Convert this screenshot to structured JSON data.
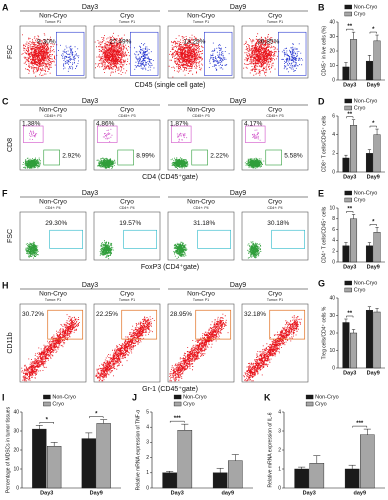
{
  "flow_panels": [
    {
      "label": "A",
      "groups": [
        "Day3",
        "Day9"
      ],
      "columns": [
        "Non-Cryo",
        "Cryo",
        "Non-Cryo",
        "Cryo"
      ],
      "gate": "Tumor: P1",
      "y_label": "FSC",
      "x_label": "CD45 (single cell gate)",
      "percentages": [
        [
          "9.30%"
        ],
        [
          "27.49%"
        ],
        [
          "13.25%"
        ],
        [
          "26.85%"
        ]
      ]
    },
    {
      "label": "C",
      "groups": [
        "Day3",
        "Day9"
      ],
      "columns": [
        "Non-Cryo",
        "Cryo",
        "Non-Cryo",
        "Cryo"
      ],
      "gate": "CD45+: P3",
      "y_label": "CD8",
      "x_label": "CD4 (CD45⁺gate)",
      "percentages": [
        [
          "1.38%",
          "2.92%"
        ],
        [
          "4.86%",
          "8.99%"
        ],
        [
          "1.87%",
          "2.22%"
        ],
        [
          "4.17%",
          "5.58%"
        ]
      ]
    },
    {
      "label": "F",
      "groups": [
        "Day3",
        "Day9"
      ],
      "columns": [
        "Non-Cryo",
        "Cryo",
        "Non-Cryo",
        "Cryo"
      ],
      "gate": "CD4+: P4",
      "y_label": "FSC",
      "x_label": "FoxP3 (CD4⁺gate)",
      "percentages": [
        [
          "29.30%"
        ],
        [
          "19.57%"
        ],
        [
          "31.18%"
        ],
        [
          "30.18%"
        ]
      ]
    },
    {
      "label": "H",
      "groups": [
        "Day3",
        "Day9"
      ],
      "columns": [
        "Non-Cryo",
        "Cryo",
        "Non-Cryo",
        "Cryo"
      ],
      "gate": "Tumor: P1",
      "y_label": "CD11b",
      "x_label": "Gr-1 (CD45⁺gate)",
      "percentages": [
        [
          "30.72%"
        ],
        [
          "22.25%"
        ],
        [
          "28.95%"
        ],
        [
          "32.18%"
        ]
      ]
    }
  ],
  "chart_data": [
    {
      "type": "bar",
      "panel_label": "B",
      "y_label": "CD45⁺ in live cells (%)",
      "categories": [
        "Day3",
        "Day9"
      ],
      "series": [
        {
          "name": "Non-Cryo",
          "color": "#1a1a1a",
          "values": [
            9,
            13
          ],
          "errors": [
            3,
            4
          ]
        },
        {
          "name": "Cryo",
          "color": "#a6a6a6",
          "values": [
            28,
            27
          ],
          "errors": [
            5,
            4
          ]
        }
      ],
      "ylim": [
        0,
        40
      ],
      "yticks": [
        0,
        10,
        20,
        30,
        40
      ],
      "annotations": [
        {
          "category": "Day3",
          "text": "**"
        },
        {
          "category": "Day9",
          "text": "*"
        }
      ]
    },
    {
      "type": "bar",
      "panel_label": "D",
      "y_label": "CD8⁺ T cells/CD45⁺ cells",
      "categories": [
        "Day3",
        "Day9"
      ],
      "series": [
        {
          "name": "Non-Cryo",
          "color": "#1a1a1a",
          "values": [
            1.5,
            2
          ],
          "errors": [
            0.3,
            0.4
          ]
        },
        {
          "name": "Cryo",
          "color": "#a6a6a6",
          "values": [
            5,
            4
          ],
          "errors": [
            0.6,
            0.6
          ]
        }
      ],
      "ylim": [
        0,
        6
      ],
      "yticks": [
        0,
        2,
        4,
        6
      ],
      "annotations": [
        {
          "category": "Day3",
          "text": "**"
        },
        {
          "category": "Day9",
          "text": "*"
        }
      ]
    },
    {
      "type": "bar",
      "panel_label": "E",
      "y_label": "CD4⁺ T cells/CD45⁺ cells",
      "categories": [
        "Day3",
        "Day9"
      ],
      "series": [
        {
          "name": "Non-Cryo",
          "color": "#1a1a1a",
          "values": [
            3,
            3
          ],
          "errors": [
            0.6,
            0.6
          ]
        },
        {
          "name": "Cryo",
          "color": "#a6a6a6",
          "values": [
            8,
            5.5
          ],
          "errors": [
            0.8,
            0.9
          ]
        }
      ],
      "ylim": [
        0,
        10
      ],
      "yticks": [
        0,
        2,
        4,
        6,
        8,
        10
      ],
      "annotations": [
        {
          "category": "Day3",
          "text": "**"
        },
        {
          "category": "Day9",
          "text": "*"
        }
      ]
    },
    {
      "type": "bar",
      "panel_label": "G",
      "y_label": "Treg cells/CD4⁺ cells %",
      "categories": [
        "Day3",
        "Day9"
      ],
      "series": [
        {
          "name": "Non-Cryo",
          "color": "#1a1a1a",
          "values": [
            26,
            33
          ],
          "errors": [
            2,
            2
          ]
        },
        {
          "name": "Cryo",
          "color": "#a6a6a6",
          "values": [
            20,
            32
          ],
          "errors": [
            2,
            2
          ]
        }
      ],
      "ylim": [
        0,
        40
      ],
      "yticks": [
        0,
        10,
        20,
        30,
        40
      ],
      "annotations": [
        {
          "category": "Day3",
          "text": "**"
        }
      ]
    },
    {
      "type": "bar",
      "panel_label": "I",
      "y_label": "Percentage of MDSCs in tumor tissues",
      "categories": [
        "Day3",
        "Day9"
      ],
      "series": [
        {
          "name": "Non-Cryo",
          "color": "#1a1a1a",
          "values": [
            31,
            26
          ],
          "errors": [
            2,
            3
          ]
        },
        {
          "name": "Cryo",
          "color": "#a6a6a6",
          "values": [
            22,
            34
          ],
          "errors": [
            2,
            2
          ]
        }
      ],
      "ylim": [
        0,
        40
      ],
      "yticks": [
        0,
        10,
        20,
        30,
        40
      ],
      "annotations": [
        {
          "category": "Day3",
          "text": "*"
        },
        {
          "category": "Day9",
          "text": "*"
        }
      ]
    },
    {
      "type": "bar",
      "panel_label": "J",
      "y_label": "Relative mRNA expression of TNF-α",
      "categories": [
        "Day3",
        "day9"
      ],
      "series": [
        {
          "name": "Non-Cryo",
          "color": "#1a1a1a",
          "values": [
            1,
            1
          ],
          "errors": [
            0.1,
            0.3
          ]
        },
        {
          "name": "Cryo",
          "color": "#a6a6a6",
          "values": [
            3.8,
            1.8
          ],
          "errors": [
            0.4,
            0.4
          ]
        }
      ],
      "ylim": [
        0,
        5
      ],
      "yticks": [
        0,
        1,
        2,
        3,
        4,
        5
      ],
      "annotations": [
        {
          "category": "Day3",
          "text": "***"
        }
      ]
    },
    {
      "type": "bar",
      "panel_label": "K",
      "y_label": "Relative mRNA expression of IL-6",
      "categories": [
        "Day3",
        "day9"
      ],
      "series": [
        {
          "name": "Non-Cryo",
          "color": "#1a1a1a",
          "values": [
            1,
            1
          ],
          "errors": [
            0.1,
            0.2
          ]
        },
        {
          "name": "Cryo",
          "color": "#a6a6a6",
          "values": [
            1.3,
            2.8
          ],
          "errors": [
            0.4,
            0.3
          ]
        }
      ],
      "ylim": [
        0,
        4
      ],
      "yticks": [
        0,
        1,
        2,
        3,
        4
      ],
      "annotations": [
        {
          "category": "day9",
          "text": "***"
        }
      ]
    }
  ]
}
